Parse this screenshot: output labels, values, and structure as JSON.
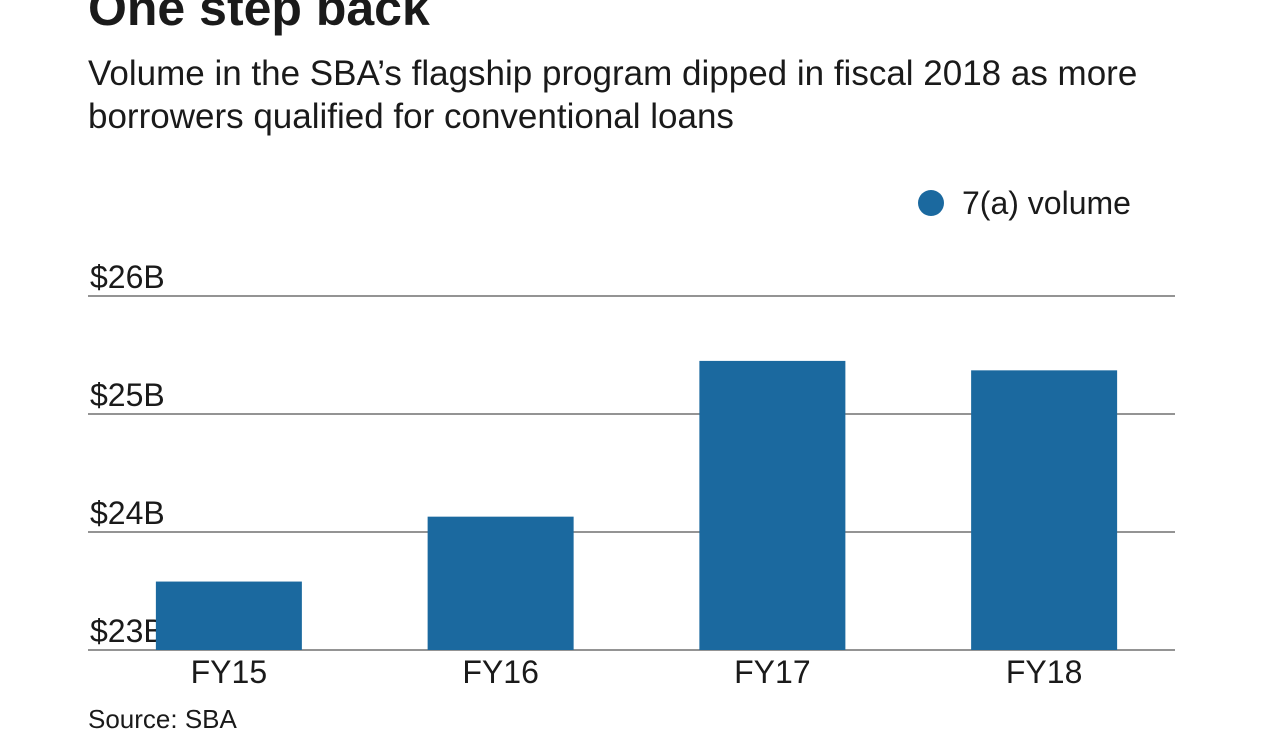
{
  "colors": {
    "bar": "#1b699f",
    "grid": "#555555",
    "text": "#1a1a1a"
  },
  "header": {
    "title": "One step back",
    "subtitle": "Volume in the SBA’s flagship program dipped in fiscal 2018 as more borrowers qualified for conventional loans"
  },
  "legend": {
    "label": "7(a) volume",
    "placement": "top-right"
  },
  "footer": {
    "source": "Source: SBA"
  },
  "chart_data": {
    "type": "bar",
    "categories": [
      "FY15",
      "FY16",
      "FY17",
      "FY18"
    ],
    "series": [
      {
        "name": "7(a) volume",
        "values": [
          23.58,
          24.13,
          25.45,
          25.37
        ]
      }
    ],
    "ylim": [
      23,
      26
    ],
    "yticks": [
      23,
      24,
      25,
      26
    ],
    "ytick_labels": [
      "$23B",
      "$24B",
      "$25B",
      "$26B"
    ],
    "ylabel": "",
    "xlabel": "",
    "grid": true
  }
}
